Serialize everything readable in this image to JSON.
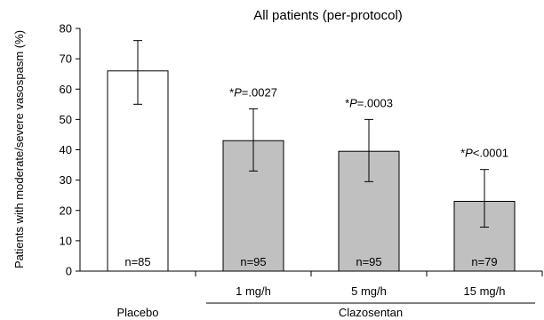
{
  "chart_data": {
    "type": "bar",
    "title": "All patients (per-protocol)",
    "ylabel": "Patients with moderate/severe vasospasm (%)",
    "ylim": [
      0,
      80
    ],
    "yticks": [
      0,
      10,
      20,
      30,
      40,
      50,
      60,
      70,
      80
    ],
    "categories": [
      "Placebo",
      "1 mg/h",
      "5 mg/h",
      "15 mg/h"
    ],
    "group_label": "Clazosentan",
    "values": [
      66,
      43,
      39.5,
      23
    ],
    "error_low": [
      55,
      33,
      29.5,
      14.5
    ],
    "error_high": [
      76,
      53.5,
      50,
      33.5
    ],
    "n_labels": [
      "n=85",
      "n=95",
      "n=95",
      "n=79"
    ],
    "p_labels": [
      null,
      {
        "prefix": "*",
        "italic": "P",
        "rest": "=.0027"
      },
      {
        "prefix": "*",
        "italic": "P",
        "rest": "=.0003"
      },
      {
        "prefix": "*",
        "italic": "P",
        "rest": "<.0001"
      }
    ],
    "bar_colors": [
      "#ffffff",
      "#c0c0c0",
      "#c0c0c0",
      "#c0c0c0"
    ],
    "bar_stroke": "#000000",
    "grid": false
  }
}
